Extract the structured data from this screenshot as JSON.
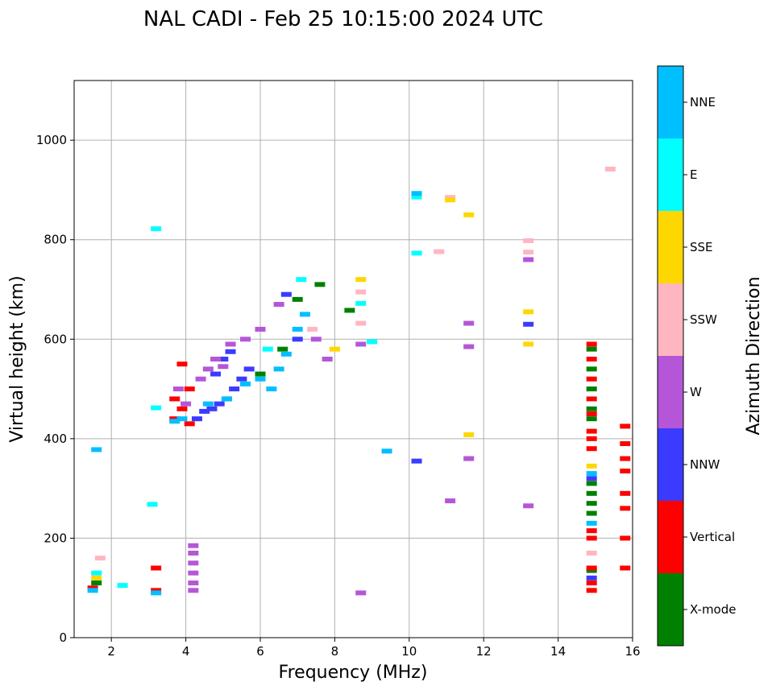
{
  "chart_data": {
    "type": "scatter",
    "title": "NAL CADI - Feb 25 10:15:00 2024 UTC",
    "xlabel": "Frequency (MHz)",
    "ylabel": "Virtual height (km)",
    "xlim": [
      1,
      16
    ],
    "ylim": [
      0,
      1120
    ],
    "xticks": [
      2,
      4,
      6,
      8,
      10,
      12,
      14,
      16
    ],
    "yticks": [
      0,
      200,
      400,
      600,
      800,
      1000
    ],
    "grid": true,
    "colorbar": {
      "title": "Azimuth Direction",
      "categories": [
        {
          "name": "X-mode",
          "color": "#008000"
        },
        {
          "name": "Vertical",
          "color": "#ff0000"
        },
        {
          "name": "NNW",
          "color": "#3b3bff"
        },
        {
          "name": "W",
          "color": "#b556d8"
        },
        {
          "name": "SSW",
          "color": "#ffb6c1"
        },
        {
          "name": "SSE",
          "color": "#ffd700"
        },
        {
          "name": "E",
          "color": "#00ffff"
        },
        {
          "name": "NNE",
          "color": "#00bfff"
        }
      ]
    },
    "series": [
      {
        "name": "X-mode",
        "points": [
          [
            14.9,
            135
          ],
          [
            14.9,
            250
          ],
          [
            14.9,
            270
          ],
          [
            14.9,
            290
          ],
          [
            14.9,
            310
          ],
          [
            14.9,
            440
          ],
          [
            14.9,
            460
          ],
          [
            14.9,
            500
          ],
          [
            14.9,
            540
          ],
          [
            14.9,
            580
          ],
          [
            6.0,
            530
          ],
          [
            6.6,
            580
          ],
          [
            7.0,
            680
          ],
          [
            7.6,
            710
          ],
          [
            8.4,
            658
          ],
          [
            1.6,
            110
          ]
        ]
      },
      {
        "name": "Vertical",
        "points": [
          [
            14.9,
            95
          ],
          [
            14.9,
            110
          ],
          [
            14.9,
            140
          ],
          [
            14.9,
            200
          ],
          [
            14.9,
            215
          ],
          [
            14.9,
            380
          ],
          [
            14.9,
            400
          ],
          [
            14.9,
            415
          ],
          [
            14.9,
            450
          ],
          [
            14.9,
            480
          ],
          [
            14.9,
            520
          ],
          [
            14.9,
            560
          ],
          [
            14.9,
            590
          ],
          [
            15.8,
            140
          ],
          [
            15.8,
            200
          ],
          [
            15.8,
            260
          ],
          [
            15.8,
            290
          ],
          [
            15.8,
            335
          ],
          [
            15.8,
            360
          ],
          [
            15.8,
            390
          ],
          [
            15.8,
            425
          ],
          [
            3.7,
            440
          ],
          [
            3.7,
            480
          ],
          [
            3.9,
            460
          ],
          [
            3.9,
            550
          ],
          [
            4.1,
            430
          ],
          [
            4.1,
            500
          ],
          [
            3.2,
            95
          ],
          [
            3.2,
            140
          ],
          [
            1.5,
            100
          ]
        ]
      },
      {
        "name": "NNW",
        "points": [
          [
            4.3,
            440
          ],
          [
            4.5,
            455
          ],
          [
            4.7,
            460
          ],
          [
            4.9,
            470
          ],
          [
            5.1,
            480
          ],
          [
            5.3,
            500
          ],
          [
            5.5,
            520
          ],
          [
            5.7,
            540
          ],
          [
            4.8,
            530
          ],
          [
            5.0,
            560
          ],
          [
            5.2,
            575
          ],
          [
            6.7,
            690
          ],
          [
            13.2,
            630
          ],
          [
            10.2,
            355
          ],
          [
            14.9,
            120
          ],
          [
            14.9,
            320
          ],
          [
            7.0,
            600
          ]
        ]
      },
      {
        "name": "W",
        "points": [
          [
            4.2,
            95
          ],
          [
            4.2,
            110
          ],
          [
            4.2,
            130
          ],
          [
            4.2,
            150
          ],
          [
            4.2,
            170
          ],
          [
            4.2,
            185
          ],
          [
            4.4,
            520
          ],
          [
            4.6,
            540
          ],
          [
            4.8,
            560
          ],
          [
            5.0,
            545
          ],
          [
            5.2,
            590
          ],
          [
            5.6,
            600
          ],
          [
            6.0,
            620
          ],
          [
            6.5,
            670
          ],
          [
            7.5,
            600
          ],
          [
            7.8,
            560
          ],
          [
            8.7,
            590
          ],
          [
            8.7,
            90
          ],
          [
            11.6,
            360
          ],
          [
            11.6,
            585
          ],
          [
            11.6,
            632
          ],
          [
            11.1,
            275
          ],
          [
            13.2,
            265
          ],
          [
            13.2,
            760
          ],
          [
            3.8,
            500
          ],
          [
            4.0,
            470
          ]
        ]
      },
      {
        "name": "SSW",
        "points": [
          [
            8.7,
            632
          ],
          [
            8.7,
            695
          ],
          [
            10.8,
            776
          ],
          [
            11.1,
            885
          ],
          [
            13.2,
            775
          ],
          [
            13.2,
            798
          ],
          [
            15.4,
            942
          ],
          [
            14.9,
            170
          ],
          [
            1.7,
            160
          ],
          [
            7.4,
            620
          ]
        ]
      },
      {
        "name": "SSE",
        "points": [
          [
            8.7,
            720
          ],
          [
            8.0,
            580
          ],
          [
            11.6,
            850
          ],
          [
            11.1,
            880
          ],
          [
            11.6,
            408
          ],
          [
            13.2,
            590
          ],
          [
            13.2,
            655
          ],
          [
            1.6,
            120
          ],
          [
            14.9,
            345
          ]
        ]
      },
      {
        "name": "E",
        "points": [
          [
            8.7,
            672
          ],
          [
            9.0,
            595
          ],
          [
            10.2,
            773
          ],
          [
            10.2,
            886
          ],
          [
            3.2,
            822
          ],
          [
            3.1,
            268
          ],
          [
            3.2,
            462
          ],
          [
            1.6,
            130
          ],
          [
            2.3,
            105
          ],
          [
            6.2,
            580
          ],
          [
            7.1,
            720
          ]
        ]
      },
      {
        "name": "NNE",
        "points": [
          [
            3.7,
            435
          ],
          [
            3.9,
            440
          ],
          [
            4.6,
            470
          ],
          [
            5.1,
            480
          ],
          [
            5.6,
            510
          ],
          [
            6.0,
            520
          ],
          [
            6.3,
            500
          ],
          [
            6.5,
            540
          ],
          [
            6.7,
            570
          ],
          [
            7.0,
            620
          ],
          [
            7.2,
            650
          ],
          [
            9.4,
            375
          ],
          [
            10.2,
            893
          ],
          [
            1.6,
            378
          ],
          [
            1.5,
            95
          ],
          [
            14.9,
            330
          ],
          [
            14.9,
            230
          ],
          [
            3.2,
            90
          ]
        ]
      }
    ]
  }
}
